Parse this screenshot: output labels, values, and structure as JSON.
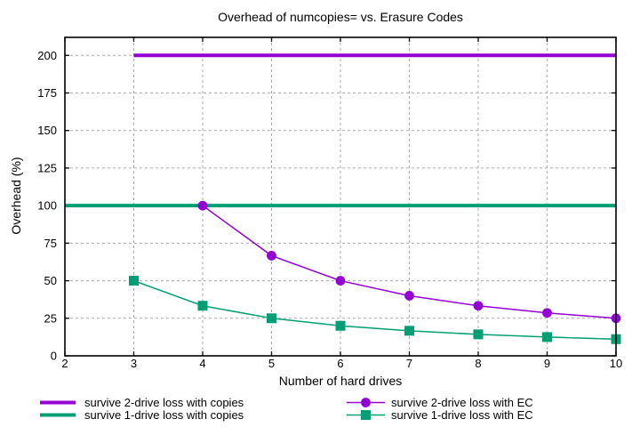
{
  "chart_data": {
    "type": "line",
    "title": "Overhead of numcopies= vs. Erasure Codes",
    "xlabel": "Number of hard drives",
    "ylabel": "Overhead (%)",
    "xlim": [
      2,
      10
    ],
    "ylim": [
      0,
      212
    ],
    "x_ticks": [
      2,
      3,
      4,
      5,
      6,
      7,
      8,
      9,
      10
    ],
    "y_ticks": [
      0,
      25,
      50,
      75,
      100,
      125,
      150,
      175,
      200
    ],
    "grid": true,
    "grid_color": "#aaaaaa",
    "background": "#ffffff",
    "legend_position": "bottom-two-columns",
    "series": [
      {
        "name": "survive 2-drive loss with copies",
        "color": "#9400d3",
        "marker": "none",
        "line_width": 4,
        "points": [
          [
            3,
            200
          ],
          [
            10,
            200
          ]
        ]
      },
      {
        "name": "survive 1-drive loss with copies",
        "color": "#009e73",
        "marker": "none",
        "line_width": 4,
        "points": [
          [
            2,
            100
          ],
          [
            10,
            100
          ]
        ]
      },
      {
        "name": "survive 2-drive loss with EC",
        "color": "#9400d3",
        "marker": "circle",
        "line_width": 1.5,
        "points": [
          [
            4,
            100
          ],
          [
            5,
            66.67
          ],
          [
            6,
            50
          ],
          [
            7,
            40
          ],
          [
            8,
            33.33
          ],
          [
            9,
            28.57
          ],
          [
            10,
            25
          ]
        ]
      },
      {
        "name": "survive 1-drive loss with EC",
        "color": "#009e73",
        "marker": "square",
        "line_width": 1.5,
        "points": [
          [
            3,
            50
          ],
          [
            4,
            33.33
          ],
          [
            5,
            25
          ],
          [
            6,
            20
          ],
          [
            7,
            16.67
          ],
          [
            8,
            14.29
          ],
          [
            9,
            12.5
          ],
          [
            10,
            11.11
          ]
        ]
      }
    ]
  }
}
